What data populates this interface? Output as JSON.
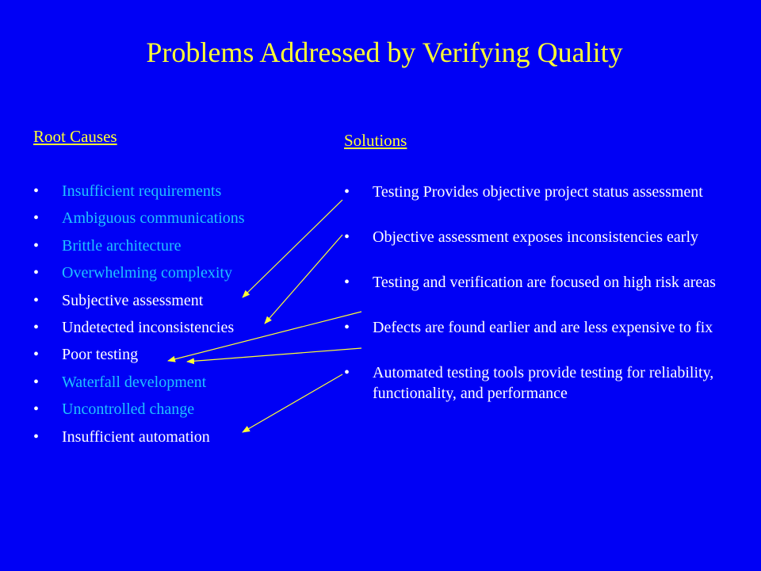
{
  "slide": {
    "title": "Problems Addressed by Verifying Quality",
    "background_color": "#0000F5",
    "title_color": "#FFFF33"
  },
  "root_causes": {
    "heading": "Root Causes",
    "items": [
      {
        "label": "Insufficient requirements",
        "color": "#1FC2FF"
      },
      {
        "label": "Ambiguous communications",
        "color": "#1FC2FF"
      },
      {
        "label": "Brittle architecture",
        "color": "#1FC2FF"
      },
      {
        "label": "Overwhelming complexity",
        "color": "#1FC2FF"
      },
      {
        "label": "Subjective assessment",
        "color": "#FFFFFF"
      },
      {
        "label": "Undetected inconsistencies",
        "color": "#FFFFFF"
      },
      {
        "label": "Poor testing",
        "color": "#FFFFFF"
      },
      {
        "label": "Waterfall development",
        "color": "#1FC2FF"
      },
      {
        "label": "Uncontrolled change",
        "color": "#1FC2FF"
      },
      {
        "label": "Insufficient automation",
        "color": "#FFFFFF"
      }
    ]
  },
  "solutions": {
    "heading": "Solutions",
    "items": [
      {
        "label": "Testing Provides objective project status assessment"
      },
      {
        "label": "Objective assessment exposes inconsistencies early"
      },
      {
        "label": "Testing and verification are focused on high risk areas"
      },
      {
        "label": "Defects are found earlier and are less expensive to fix"
      },
      {
        "label": "Automated testing tools provide testing for reliability, functionality, and performance"
      }
    ]
  },
  "bullet_glyph": "•",
  "arrow_color": "#FFFF33"
}
